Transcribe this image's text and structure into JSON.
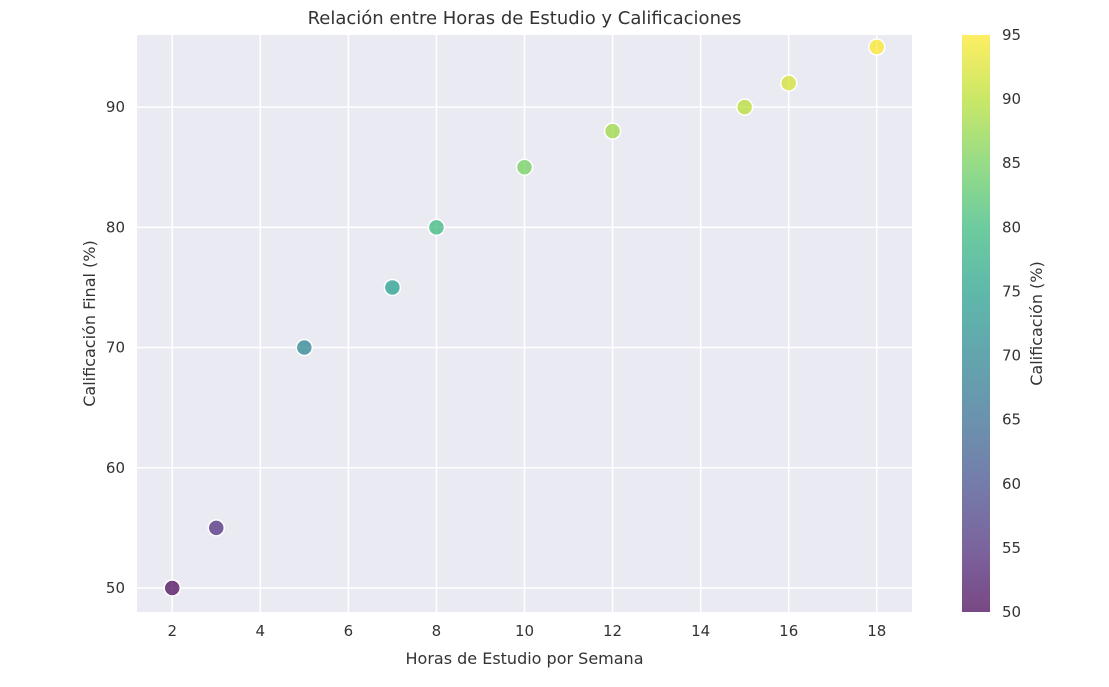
{
  "chart_data": {
    "type": "scatter",
    "title": "Relación entre Horas de Estudio y Calificaciones",
    "xlabel": "Horas de Estudio por Semana",
    "ylabel": "Calificación Final (%)",
    "xlim": [
      1.2,
      18.8
    ],
    "ylim": [
      48,
      96
    ],
    "xticks": [
      2,
      4,
      6,
      8,
      10,
      12,
      14,
      16,
      18
    ],
    "yticks": [
      50,
      60,
      70,
      80,
      90
    ],
    "grid": true,
    "points": [
      {
        "x": 2,
        "y": 50
      },
      {
        "x": 3,
        "y": 55
      },
      {
        "x": 5,
        "y": 70
      },
      {
        "x": 7,
        "y": 75
      },
      {
        "x": 8,
        "y": 80
      },
      {
        "x": 10,
        "y": 85
      },
      {
        "x": 12,
        "y": 88
      },
      {
        "x": 15,
        "y": 90
      },
      {
        "x": 16,
        "y": 92
      },
      {
        "x": 18,
        "y": 95
      }
    ],
    "colorbar": {
      "label": "Calificación (%)",
      "colormap": "viridis",
      "range": [
        50,
        95
      ],
      "ticks": [
        50,
        55,
        60,
        65,
        70,
        75,
        80,
        85,
        90,
        95
      ]
    },
    "colors": {
      "plot_background": "#eaeaf2",
      "grid": "#ffffff",
      "viridis": [
        "#440154",
        "#482878",
        "#3e4989",
        "#31688e",
        "#26828e",
        "#1f9e89",
        "#35b779",
        "#6ece58",
        "#b5de2b",
        "#fde725"
      ]
    }
  }
}
